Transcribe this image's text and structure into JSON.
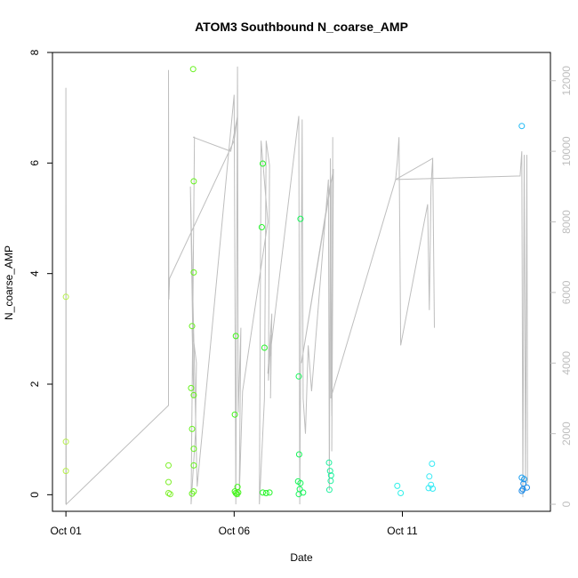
{
  "chart_data": {
    "type": "scatter",
    "title": "ATOM3 Southbound N_coarse_AMP",
    "xlabel": "Date",
    "ylabel": "N_coarse_AMP",
    "x_ticks": [
      {
        "label": "Oct 01",
        "day": 1.0
      },
      {
        "label": "Oct 06",
        "day": 6.0
      },
      {
        "label": "Oct 11",
        "day": 11.0
      }
    ],
    "xlim": [
      0.6,
      15.4
    ],
    "ylim": [
      -0.3,
      8.0
    ],
    "y_ticks": [
      0,
      2,
      4,
      6,
      8
    ],
    "y2_ticks": [
      0,
      2000,
      4000,
      6000,
      8000,
      10000,
      12000
    ],
    "y2lim": [
      -200,
      12800
    ],
    "y2_color": "#bebebe",
    "grid": false,
    "points": [
      {
        "day": 1.0,
        "y": 3.58,
        "color": "#b6ef4a"
      },
      {
        "day": 1.0,
        "y": 0.96,
        "color": "#b6ef4a"
      },
      {
        "day": 1.0,
        "y": 0.43,
        "color": "#b6ef4a"
      },
      {
        "day": 4.05,
        "y": 0.53,
        "color": "#7ff02c"
      },
      {
        "day": 4.05,
        "y": 0.23,
        "color": "#7ff02c"
      },
      {
        "day": 4.05,
        "y": 0.03,
        "color": "#7ff02c"
      },
      {
        "day": 4.1,
        "y": 0.01,
        "color": "#7ff02c"
      },
      {
        "day": 4.78,
        "y": 7.7,
        "color": "#66f21d"
      },
      {
        "day": 4.8,
        "y": 5.67,
        "color": "#66f21d"
      },
      {
        "day": 4.8,
        "y": 4.02,
        "color": "#66f21d"
      },
      {
        "day": 4.75,
        "y": 3.05,
        "color": "#66f21d"
      },
      {
        "day": 4.72,
        "y": 1.93,
        "color": "#66f21d"
      },
      {
        "day": 4.8,
        "y": 1.8,
        "color": "#66f21d"
      },
      {
        "day": 4.75,
        "y": 1.19,
        "color": "#66f21d"
      },
      {
        "day": 4.8,
        "y": 0.83,
        "color": "#66f21d"
      },
      {
        "day": 4.8,
        "y": 0.53,
        "color": "#66f21d"
      },
      {
        "day": 4.8,
        "y": 0.06,
        "color": "#66f21d"
      },
      {
        "day": 4.75,
        "y": 0.02,
        "color": "#66f21d"
      },
      {
        "day": 6.05,
        "y": 2.87,
        "color": "#3ef514"
      },
      {
        "day": 6.02,
        "y": 1.45,
        "color": "#3ef514"
      },
      {
        "day": 6.1,
        "y": 0.14,
        "color": "#3ef514"
      },
      {
        "day": 6.02,
        "y": 0.06,
        "color": "#3ef514"
      },
      {
        "day": 6.05,
        "y": 0.03,
        "color": "#3ef514"
      },
      {
        "day": 6.08,
        "y": 0.01,
        "color": "#3ef514"
      },
      {
        "day": 6.12,
        "y": 0.04,
        "color": "#3ef514"
      },
      {
        "day": 6.85,
        "y": 5.99,
        "color": "#26f52a"
      },
      {
        "day": 6.82,
        "y": 4.84,
        "color": "#26f52a"
      },
      {
        "day": 6.9,
        "y": 2.66,
        "color": "#26f52a"
      },
      {
        "day": 6.85,
        "y": 0.04,
        "color": "#26f52a"
      },
      {
        "day": 6.95,
        "y": 0.03,
        "color": "#26f52a"
      },
      {
        "day": 7.05,
        "y": 0.04,
        "color": "#26f52a"
      },
      {
        "day": 7.97,
        "y": 4.99,
        "color": "#16f559"
      },
      {
        "day": 7.92,
        "y": 2.14,
        "color": "#16f559"
      },
      {
        "day": 7.93,
        "y": 0.73,
        "color": "#16f559"
      },
      {
        "day": 7.9,
        "y": 0.24,
        "color": "#16f559"
      },
      {
        "day": 7.97,
        "y": 0.21,
        "color": "#16f559"
      },
      {
        "day": 7.95,
        "y": 0.1,
        "color": "#16f559"
      },
      {
        "day": 8.05,
        "y": 0.04,
        "color": "#16f559"
      },
      {
        "day": 7.92,
        "y": 0.01,
        "color": "#16f559"
      },
      {
        "day": 8.82,
        "y": 0.58,
        "color": "#1ef09e"
      },
      {
        "day": 8.85,
        "y": 0.43,
        "color": "#1ef09e"
      },
      {
        "day": 8.88,
        "y": 0.35,
        "color": "#1ef09e"
      },
      {
        "day": 8.87,
        "y": 0.25,
        "color": "#1ef09e"
      },
      {
        "day": 8.83,
        "y": 0.09,
        "color": "#1ef09e"
      },
      {
        "day": 10.85,
        "y": 0.16,
        "color": "#2ef0e8"
      },
      {
        "day": 10.95,
        "y": 0.03,
        "color": "#2ef0e8"
      },
      {
        "day": 11.88,
        "y": 0.56,
        "color": "#36eaf5"
      },
      {
        "day": 11.8,
        "y": 0.33,
        "color": "#36eaf5"
      },
      {
        "day": 11.85,
        "y": 0.18,
        "color": "#36eaf5"
      },
      {
        "day": 11.78,
        "y": 0.12,
        "color": "#36eaf5"
      },
      {
        "day": 11.9,
        "y": 0.11,
        "color": "#36eaf5"
      },
      {
        "day": 14.55,
        "y": 6.67,
        "color": "#1eb9f5"
      },
      {
        "day": 14.55,
        "y": 0.31,
        "color": "#1a9ef0"
      },
      {
        "day": 14.62,
        "y": 0.28,
        "color": "#1a9ef0"
      },
      {
        "day": 14.6,
        "y": 0.2,
        "color": "#1a8ae8"
      },
      {
        "day": 14.7,
        "y": 0.13,
        "color": "#1a8ae8"
      },
      {
        "day": 14.58,
        "y": 0.1,
        "color": "#1a8ae8"
      },
      {
        "day": 14.55,
        "y": 0.07,
        "color": "#1a8ae8"
      }
    ],
    "secondary_line": [
      [
        1.0,
        0
      ],
      [
        1.0,
        11800
      ],
      [
        1.01,
        0
      ],
      [
        4.05,
        2800
      ],
      [
        4.05,
        12300
      ],
      [
        4.06,
        5800
      ],
      [
        4.08,
        6400
      ],
      [
        6.0,
        10300
      ],
      [
        6.1,
        11000
      ],
      [
        5.9,
        10000
      ],
      [
        4.78,
        10400
      ],
      [
        4.82,
        10400
      ],
      [
        4.72,
        0
      ],
      [
        4.85,
        2000
      ],
      [
        4.88,
        4000
      ],
      [
        4.75,
        5000
      ],
      [
        4.8,
        3000
      ],
      [
        4.7,
        9000
      ],
      [
        4.9,
        500
      ],
      [
        6.0,
        11600
      ],
      [
        6.05,
        0
      ],
      [
        6.1,
        12400
      ],
      [
        6.12,
        2600
      ],
      [
        6.2,
        5000
      ],
      [
        6.15,
        200
      ],
      [
        6.25,
        3200
      ],
      [
        7.0,
        8000
      ],
      [
        6.8,
        10300
      ],
      [
        6.75,
        0
      ],
      [
        6.9,
        3000
      ],
      [
        6.95,
        10300
      ],
      [
        7.05,
        9600
      ],
      [
        7.02,
        3500
      ],
      [
        7.1,
        4800
      ],
      [
        7.08,
        3000
      ],
      [
        7.12,
        5400
      ],
      [
        7.0,
        3700
      ],
      [
        7.92,
        11000
      ],
      [
        7.95,
        0
      ],
      [
        8.02,
        10900
      ],
      [
        8.05,
        3000
      ],
      [
        8.12,
        2000
      ],
      [
        8.2,
        4500
      ],
      [
        8.3,
        3200
      ],
      [
        8.8,
        9200
      ],
      [
        8.83,
        400
      ],
      [
        8.86,
        9800
      ],
      [
        8.9,
        2500
      ],
      [
        8.93,
        10400
      ],
      [
        8.9,
        1500
      ],
      [
        8.95,
        9500
      ],
      [
        8.0,
        4000
      ],
      [
        8.88,
        9200
      ],
      [
        8.87,
        3000
      ],
      [
        10.8,
        9200
      ],
      [
        10.85,
        9700
      ],
      [
        10.9,
        10400
      ],
      [
        10.95,
        4500
      ],
      [
        11.75,
        8500
      ],
      [
        11.8,
        5500
      ],
      [
        11.85,
        9000
      ],
      [
        11.9,
        9800
      ],
      [
        11.95,
        5000
      ],
      [
        11.9,
        9800
      ],
      [
        10.8,
        9200
      ],
      [
        14.5,
        9300
      ],
      [
        14.55,
        10000
      ],
      [
        14.58,
        200
      ],
      [
        14.62,
        9900
      ],
      [
        14.66,
        500
      ],
      [
        14.7,
        9900
      ],
      [
        14.72,
        600
      ]
    ]
  }
}
